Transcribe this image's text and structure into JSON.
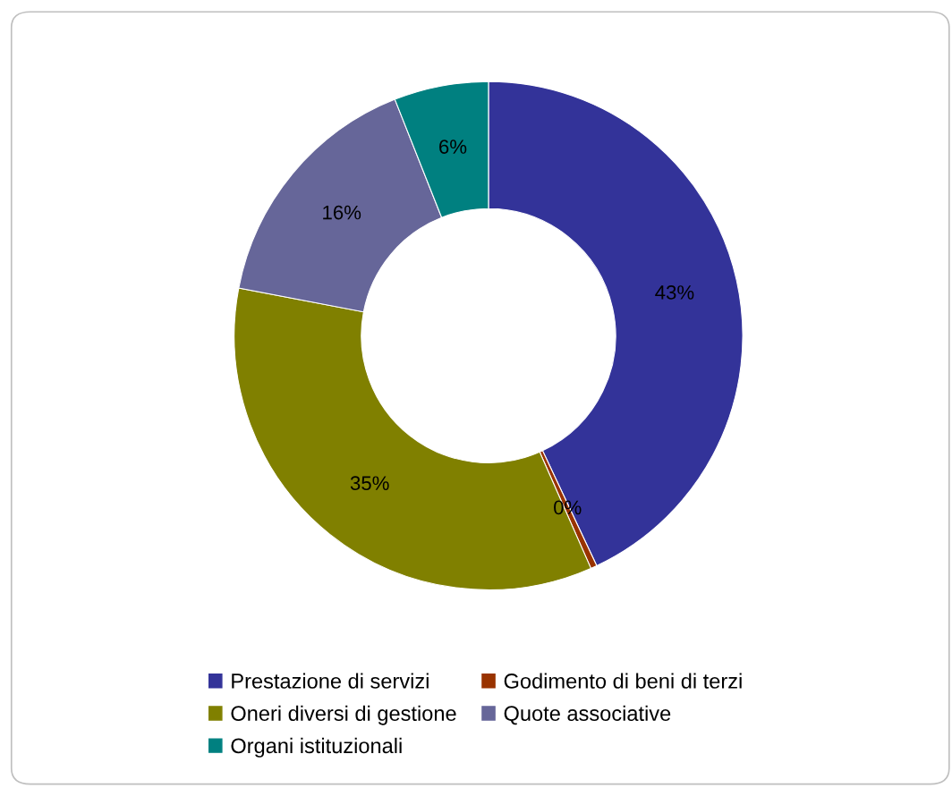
{
  "chart_data": {
    "type": "donut",
    "categories": [
      "Prestazione di servizi",
      "Godimento di beni di terzi",
      "Oneri diversi di gestione",
      "Quote associative",
      "Organi istituzionali"
    ],
    "values": [
      43,
      0.4,
      34.6,
      16,
      6
    ],
    "value_labels": [
      "43%",
      "0%",
      "35%",
      "16%",
      "6%"
    ],
    "colors": [
      "#333399",
      "#993300",
      "#808000",
      "#666699",
      "#008080"
    ],
    "legend": "bottom"
  }
}
